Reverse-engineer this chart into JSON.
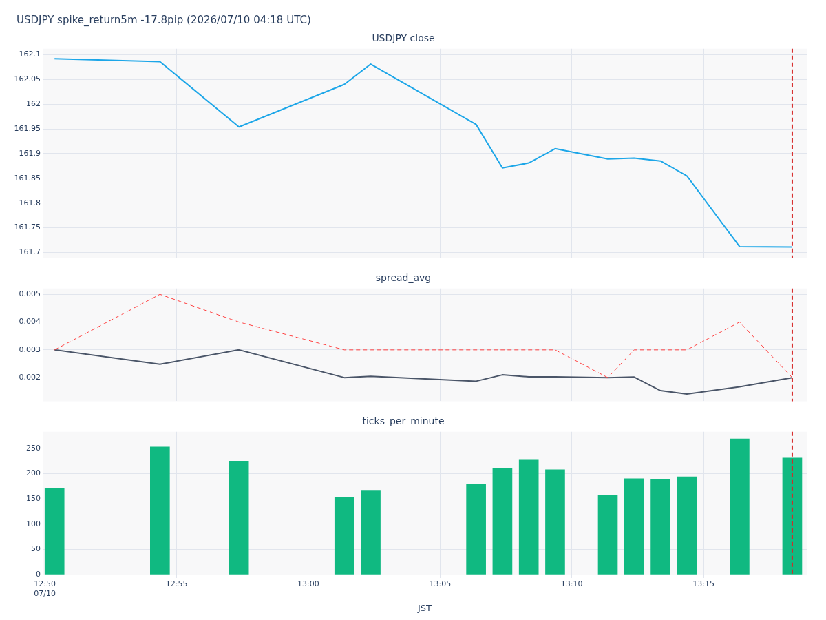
{
  "chart_data": [
    {
      "type": "line",
      "title": "USDJPY close",
      "annotations": [
        "USDJPY spike_return5m -17.8pip (2026/07/10 04:18 UTC)"
      ],
      "marker": "none",
      "grid": true,
      "tick_labels": "y",
      "x": [
        "2026-07-10T12:50:22",
        "2026-07-10T12:54:22",
        "2026-07-10T12:57:22",
        "2026-07-10T13:01:22",
        "2026-07-10T13:02:22",
        "2026-07-10T13:06:22",
        "2026-07-10T13:07:22",
        "2026-07-10T13:08:22",
        "2026-07-10T13:09:22",
        "2026-07-10T13:11:22",
        "2026-07-10T13:12:22",
        "2026-07-10T13:13:22",
        "2026-07-10T13:14:22",
        "2026-07-10T13:16:22",
        "2026-07-10T13:18:22"
      ],
      "series": [
        {
          "color": "#1ca6e8",
          "values": [
            162.092,
            162.086,
            161.954,
            162.04,
            162.081,
            161.959,
            161.871,
            161.881,
            161.91,
            161.889,
            161.891,
            161.885,
            161.855,
            161.712,
            161.711
          ]
        }
      ],
      "xlim": [
        "2026-07-10T12:49:55",
        "2026-07-10T13:18:55"
      ],
      "xticks": [
        {
          "value": "2026-07-10T12:50",
          "label": null
        },
        {
          "value": "2026-07-10T12:55",
          "label": null
        },
        {
          "value": "2026-07-10T13:00",
          "label": null
        },
        {
          "value": "2026-07-10T13:05",
          "label": null
        },
        {
          "value": "2026-07-10T13:10",
          "label": null
        },
        {
          "value": "2026-07-10T13:15",
          "label": null
        }
      ],
      "ylim": [
        161.689,
        162.112
      ],
      "yticks": [
        161.7,
        161.75,
        161.8,
        161.85,
        161.9,
        161.95,
        162,
        162.05,
        162.1
      ],
      "ref_lines": [
        {
          "axis": "x",
          "value": "2026-07-10T13:18:22",
          "color": "#d62728",
          "line_style": "dashed"
        }
      ]
    },
    {
      "type": "line",
      "title": "spread_avg",
      "marker": "none",
      "grid": true,
      "tick_labels": "y",
      "x": [
        "2026-07-10T12:50:22",
        "2026-07-10T12:54:22",
        "2026-07-10T12:57:22",
        "2026-07-10T13:01:22",
        "2026-07-10T13:02:22",
        "2026-07-10T13:06:22",
        "2026-07-10T13:07:22",
        "2026-07-10T13:08:22",
        "2026-07-10T13:09:22",
        "2026-07-10T13:11:22",
        "2026-07-10T13:12:22",
        "2026-07-10T13:13:22",
        "2026-07-10T13:14:22",
        "2026-07-10T13:16:22",
        "2026-07-10T13:18:22"
      ],
      "series": [
        {
          "color": "#ff4040",
          "line_style": "dashed",
          "values": [
            0.003,
            0.005,
            0.004,
            0.003,
            0.003,
            0.003,
            0.003,
            0.003,
            0.003,
            0.002,
            0.003,
            0.003,
            0.003,
            0.004,
            0.002
          ]
        },
        {
          "color": "#4a5568",
          "values": [
            0.003,
            0.00248,
            0.003,
            0.002,
            0.00205,
            0.00187,
            0.0021,
            0.00203,
            0.00203,
            0.002,
            0.00202,
            0.00153,
            0.00141,
            0.00167,
            0.002
          ]
        }
      ],
      "xlim": [
        "2026-07-10T12:49:55",
        "2026-07-10T13:18:55"
      ],
      "xticks": [
        {
          "value": "2026-07-10T12:50",
          "label": null
        },
        {
          "value": "2026-07-10T12:55",
          "label": null
        },
        {
          "value": "2026-07-10T13:00",
          "label": null
        },
        {
          "value": "2026-07-10T13:05",
          "label": null
        },
        {
          "value": "2026-07-10T13:10",
          "label": null
        },
        {
          "value": "2026-07-10T13:15",
          "label": null
        }
      ],
      "ylim": [
        0.00115,
        0.00521
      ],
      "yticks": [
        0.002,
        0.003,
        0.004,
        0.005
      ],
      "ref_lines": [
        {
          "axis": "x",
          "value": "2026-07-10T13:18:22",
          "color": "#d62728",
          "line_style": "dashed"
        }
      ]
    },
    {
      "type": "bar",
      "title": "ticks_per_minute",
      "xlabel": "JST",
      "grid": true,
      "x": [
        "2026-07-10T12:50:22",
        "2026-07-10T12:54:22",
        "2026-07-10T12:57:22",
        "2026-07-10T13:01:22",
        "2026-07-10T13:02:22",
        "2026-07-10T13:06:22",
        "2026-07-10T13:07:22",
        "2026-07-10T13:08:22",
        "2026-07-10T13:09:22",
        "2026-07-10T13:11:22",
        "2026-07-10T13:12:22",
        "2026-07-10T13:13:22",
        "2026-07-10T13:14:22",
        "2026-07-10T13:16:22",
        "2026-07-10T13:18:22"
      ],
      "series": [
        {
          "color": "#10b981",
          "values": [
            171,
            253,
            225,
            153,
            166,
            180,
            210,
            227,
            208,
            158,
            190,
            189,
            194,
            269,
            231
          ]
        }
      ],
      "xlim": [
        "2026-07-10T12:49:55",
        "2026-07-10T13:18:55"
      ],
      "xticks": [
        {
          "value": "2026-07-10T12:50",
          "label": "12:50\n07/10"
        },
        {
          "value": "2026-07-10T12:55",
          "label": "12:55"
        },
        {
          "value": "2026-07-10T13:00",
          "label": "13:00"
        },
        {
          "value": "2026-07-10T13:05",
          "label": "13:05"
        },
        {
          "value": "2026-07-10T13:10",
          "label": "13:10"
        },
        {
          "value": "2026-07-10T13:15",
          "label": "13:15"
        }
      ],
      "ylim": [
        0,
        283
      ],
      "yticks": [
        0,
        50,
        100,
        150,
        200,
        250
      ],
      "ref_lines": [
        {
          "axis": "x",
          "value": "2026-07-10T13:18:22",
          "color": "#d62728",
          "line_style": "dashed"
        }
      ]
    }
  ]
}
